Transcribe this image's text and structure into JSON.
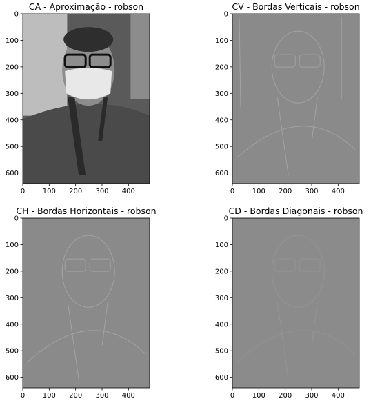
{
  "chart_data": [
    {
      "type": "image",
      "title": "CA - Aproximação - robson",
      "xlim": [
        0,
        480
      ],
      "ylim": [
        640,
        0
      ],
      "xticks": [
        0,
        100,
        200,
        300,
        400
      ],
      "yticks": [
        0,
        100,
        200,
        300,
        400,
        500,
        600
      ],
      "content": "grayscale photo (approximation coefficients)",
      "colors": {
        "bg": "#5a5a5a",
        "light": "#bdbdbd"
      }
    },
    {
      "type": "image",
      "title": "CV - Bordas Verticais - robson",
      "xlim": [
        0,
        480
      ],
      "ylim": [
        640,
        0
      ],
      "xticks": [
        0,
        100,
        200,
        300,
        400
      ],
      "yticks": [
        0,
        100,
        200,
        300,
        400,
        500,
        600
      ],
      "content": "vertical edge coefficients",
      "colors": {
        "bg": "#8a8a8a"
      }
    },
    {
      "type": "image",
      "title": "CH - Bordas Horizontais - robson",
      "xlim": [
        0,
        480
      ],
      "ylim": [
        640,
        0
      ],
      "xticks": [
        0,
        100,
        200,
        300,
        400
      ],
      "yticks": [
        0,
        100,
        200,
        300,
        400,
        500,
        600
      ],
      "content": "horizontal edge coefficients",
      "colors": {
        "bg": "#8a8a8a"
      }
    },
    {
      "type": "image",
      "title": "CD - Bordas Diagonais - robson",
      "xlim": [
        0,
        480
      ],
      "ylim": [
        640,
        0
      ],
      "xticks": [
        0,
        100,
        200,
        300,
        400
      ],
      "yticks": [
        0,
        100,
        200,
        300,
        400,
        500,
        600
      ],
      "content": "diagonal edge coefficients",
      "colors": {
        "bg": "#8b8b8b"
      }
    }
  ]
}
